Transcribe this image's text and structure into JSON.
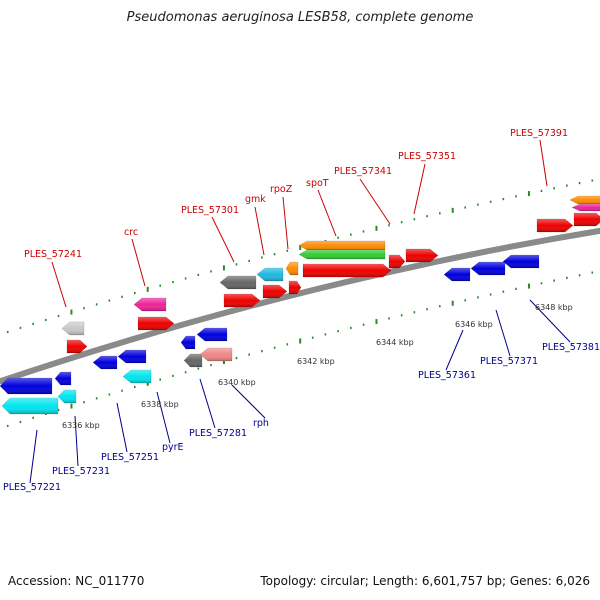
{
  "title": "Pseudomonas aeruginosa LESB58, complete genome",
  "accession_text": "Accession: NC_011770",
  "topology_text": "Topology: circular; Length: 6,601,757 bp; Genes: 6,026",
  "colors": {
    "backbone": "#8a8a8a",
    "tick": "#2a8a2a",
    "label_forward": "#cc0000",
    "label_reverse": "#00008b"
  },
  "scale_labels": [
    "6336 kbp",
    "6338 kbp",
    "6340 kbp",
    "6342 kbp",
    "6344 kbp",
    "6346 kbp",
    "6348 kbp"
  ],
  "forward_labels": [
    "PLES_57241",
    "crc",
    "PLES_57301",
    "gmk",
    "rpoZ",
    "spoT",
    "PLES_57341",
    "PLES_57351",
    "PLES_57391"
  ],
  "reverse_labels": [
    "PLES_57221",
    "PLES_57231",
    "PLES_57251",
    "pyrE",
    "PLES_57281",
    "rph",
    "PLES_57361",
    "PLES_57371",
    "PLES_57381"
  ]
}
